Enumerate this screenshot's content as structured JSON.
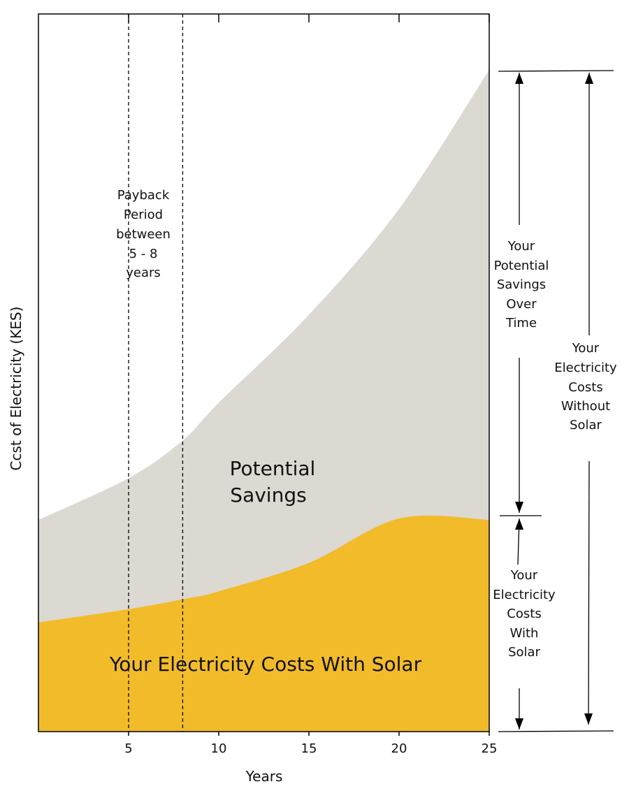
{
  "chart_data": {
    "type": "area",
    "title": "",
    "xlabel": "Years",
    "ylabel": "Ccst of Electricity (KES)",
    "x_range": [
      0,
      25
    ],
    "x_ticks": [
      5,
      10,
      15,
      20,
      25
    ],
    "series": [
      {
        "name": "Your Electricity Costs With Solar",
        "color": "#f2bb2a",
        "x": [
          0,
          5,
          8,
          10,
          15,
          20,
          25
        ],
        "values": [
          0.165,
          0.185,
          0.2,
          0.212,
          0.255,
          0.322,
          0.32
        ]
      },
      {
        "name": "Potential Savings",
        "color": "#dcd9d3",
        "x": [
          0,
          5,
          8,
          10,
          15,
          20,
          25
        ],
        "values": [
          0.32,
          0.383,
          0.44,
          0.497,
          0.63,
          0.79,
          1.0
        ]
      }
    ],
    "reference_lines": [
      {
        "x": 5,
        "style": "dashed"
      },
      {
        "x": 8,
        "style": "dashed"
      }
    ],
    "annotations": {
      "payback": [
        "Payback",
        "Period",
        "between",
        "5 - 8",
        "years"
      ],
      "savings_area": [
        "Potential",
        "Savings"
      ],
      "solar_area": "Your Electricity Costs With Solar",
      "right_savings": [
        "Your",
        "Potential",
        "Savings",
        "Over",
        "Time"
      ],
      "right_with_solar": [
        "Your",
        "Electricity",
        "Costs",
        "With",
        "Solar"
      ],
      "right_without_solar": [
        "Your",
        "Electricity",
        "Costs",
        "Without",
        "Solar"
      ]
    }
  }
}
